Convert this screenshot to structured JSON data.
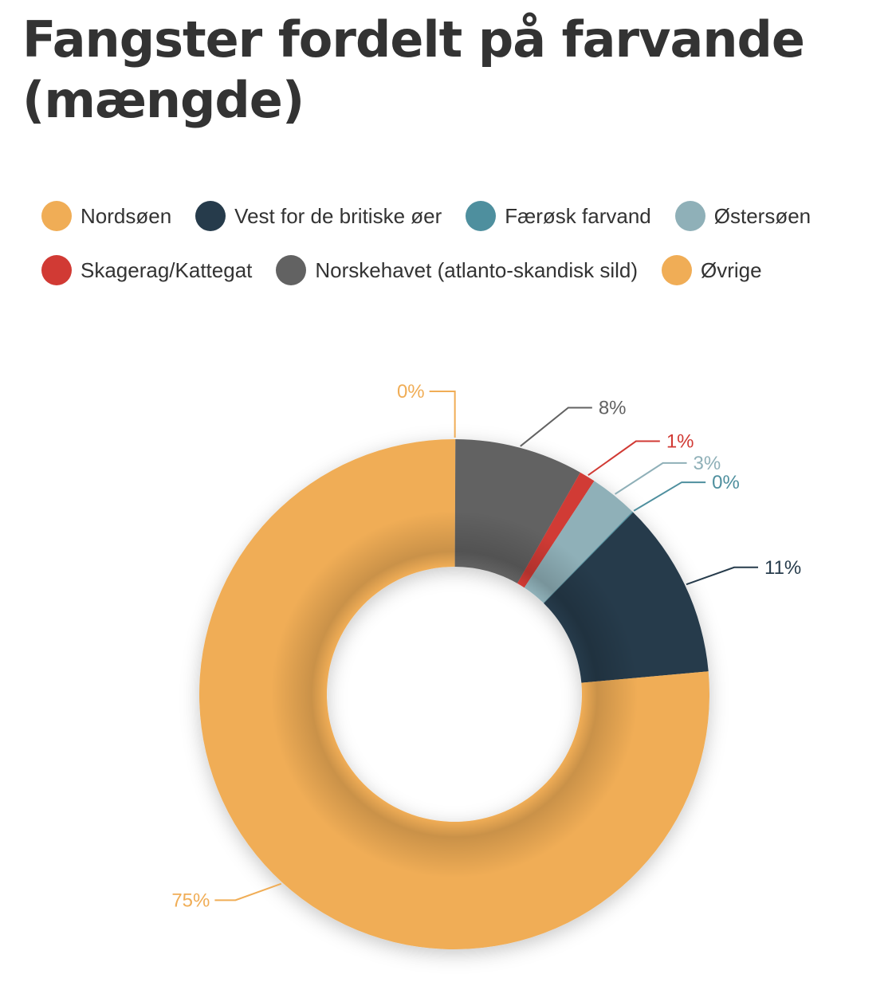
{
  "title": "Fangster fordelt på farvande (mængde)",
  "chart_data": {
    "type": "pie",
    "donut": true,
    "legend_position": "top",
    "series": [
      {
        "name": "Nordsøen",
        "value": 75,
        "label": "75%",
        "color": "#F0AD56"
      },
      {
        "name": "Vest for de britiske øer",
        "value": 11,
        "label": "11%",
        "color": "#263B4B"
      },
      {
        "name": "Færøsk farvand",
        "value": 0,
        "label": "0%",
        "color": "#4E8F9E"
      },
      {
        "name": "Østersøen",
        "value": 3,
        "label": "3%",
        "color": "#8FB0B8"
      },
      {
        "name": "Skagerag/Kattegat",
        "value": 1,
        "label": "1%",
        "color": "#D13A34"
      },
      {
        "name": "Norskehavet (atlanto-skandisk sild)",
        "value": 8,
        "label": "8%",
        "color": "#626262"
      },
      {
        "name": "Øvrige",
        "value": 0,
        "label": "0%",
        "color": "#F0AD56"
      }
    ]
  }
}
